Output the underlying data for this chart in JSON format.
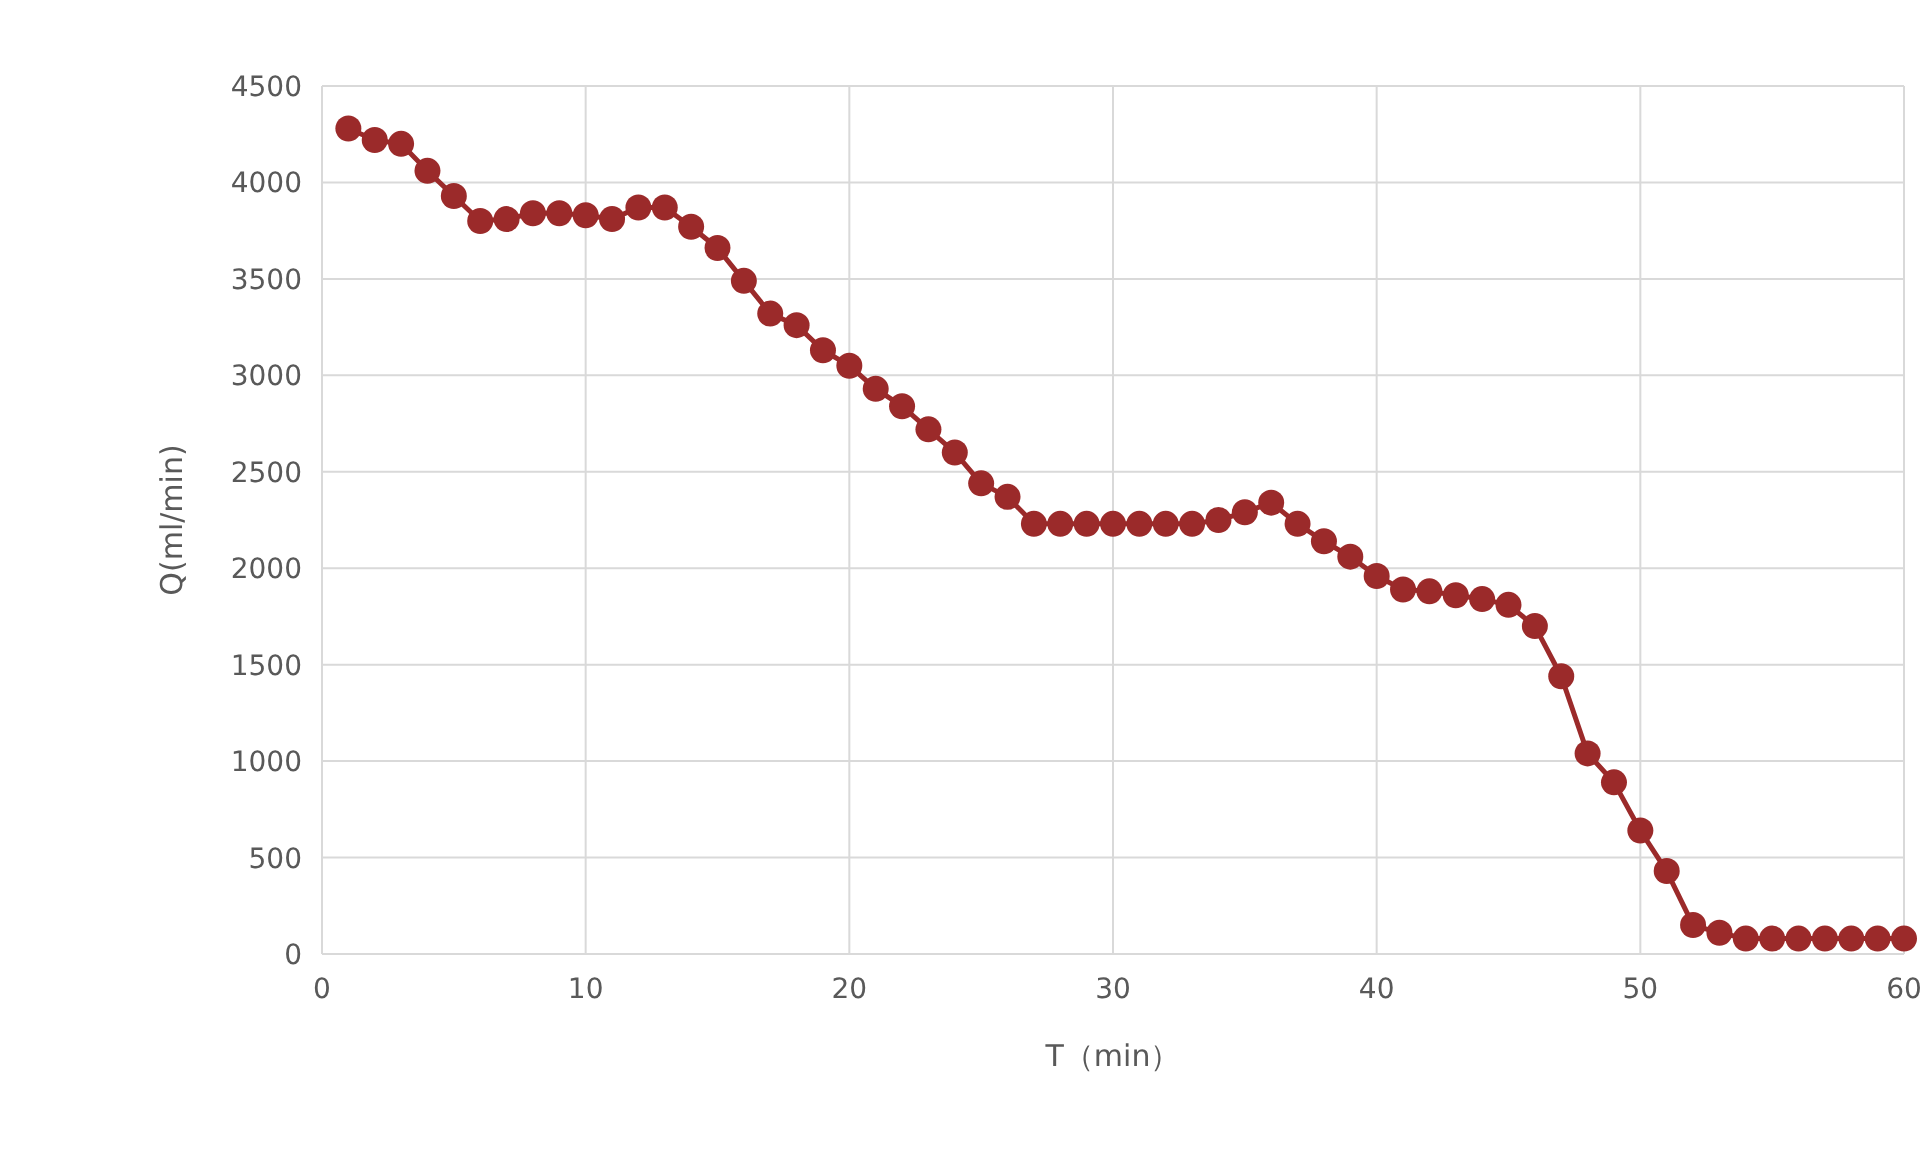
{
  "chart_data": {
    "type": "line",
    "xlabel": "T（min）",
    "ylabel": "Q(ml/min)",
    "x": [
      1,
      2,
      3,
      4,
      5,
      6,
      7,
      8,
      9,
      10,
      11,
      12,
      13,
      14,
      15,
      16,
      17,
      18,
      19,
      20,
      21,
      22,
      23,
      24,
      25,
      26,
      27,
      28,
      29,
      30,
      31,
      32,
      33,
      34,
      35,
      36,
      37,
      38,
      39,
      40,
      41,
      42,
      43,
      44,
      45,
      46,
      47,
      48,
      49,
      50,
      51,
      52,
      53,
      54,
      55,
      56,
      57,
      58,
      59,
      60
    ],
    "series": [
      {
        "color": "#9b2a2a",
        "values": [
          4280,
          4220,
          4200,
          4060,
          3930,
          3800,
          3810,
          3840,
          3840,
          3830,
          3810,
          3870,
          3870,
          3770,
          3660,
          3490,
          3320,
          3260,
          3130,
          3050,
          2930,
          2840,
          2720,
          2600,
          2440,
          2370,
          2230,
          2230,
          2230,
          2230,
          2230,
          2230,
          2230,
          2250,
          2290,
          2340,
          2230,
          2140,
          2060,
          1960,
          1890,
          1880,
          1860,
          1840,
          1810,
          1700,
          1440,
          1040,
          890,
          640,
          430,
          150,
          110,
          80,
          80,
          80,
          80,
          80,
          80,
          80
        ]
      }
    ],
    "xlim": [
      0,
      60
    ],
    "xticks": [
      0,
      10,
      20,
      30,
      40,
      50,
      60
    ],
    "ylim": [
      0,
      4500
    ],
    "yticks": [
      0,
      500,
      1000,
      1500,
      2000,
      2500,
      3000,
      3500,
      4000,
      4500
    ],
    "grid": true,
    "marker": "circle",
    "line_style": "solid"
  }
}
